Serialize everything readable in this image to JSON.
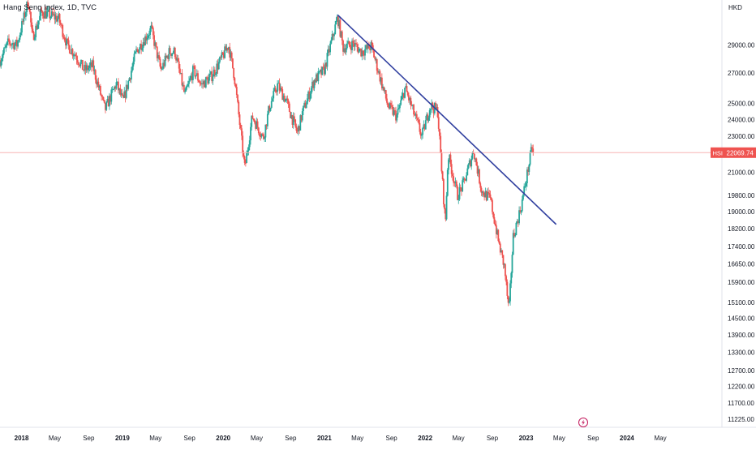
{
  "chart_title": "Hang Seng Index, 1D, TVC",
  "chart_data": {
    "type": "candlestick",
    "title": "Hang Seng Index, 1D, TVC",
    "symbol": "HSI",
    "currency": "HKD",
    "last_price": 22069.74,
    "last_price_label": "22069.74",
    "y_scale": "log",
    "ylim": [
      11000,
      32500
    ],
    "xlim": [
      "2017-10-15",
      "2024-12-10"
    ],
    "grid": false,
    "y_ticks": [
      "29000.00",
      "27000.00",
      "25000.00",
      "24000.00",
      "23000.00",
      "21000.00",
      "19800.00",
      "19000.00",
      "18200.00",
      "17400.00",
      "16650.00",
      "15900.00",
      "15100.00",
      "14500.00",
      "13900.00",
      "13300.00",
      "12700.00",
      "12200.00",
      "11700.00",
      "11225.00"
    ],
    "x_ticks": [
      {
        "label": "2018",
        "date": "2018-01-01"
      },
      {
        "label": "May",
        "date": "2018-05-01"
      },
      {
        "label": "Sep",
        "date": "2018-09-01"
      },
      {
        "label": "2019",
        "date": "2019-01-01"
      },
      {
        "label": "May",
        "date": "2019-05-01"
      },
      {
        "label": "Sep",
        "date": "2019-09-01"
      },
      {
        "label": "2020",
        "date": "2020-01-01"
      },
      {
        "label": "May",
        "date": "2020-05-01"
      },
      {
        "label": "Sep",
        "date": "2020-09-01"
      },
      {
        "label": "2021",
        "date": "2021-01-01"
      },
      {
        "label": "May",
        "date": "2021-05-01"
      },
      {
        "label": "Sep",
        "date": "2021-09-01"
      },
      {
        "label": "2022",
        "date": "2022-01-01"
      },
      {
        "label": "May",
        "date": "2022-05-01"
      },
      {
        "label": "Sep",
        "date": "2022-09-01"
      },
      {
        "label": "2023",
        "date": "2023-01-01"
      },
      {
        "label": "May",
        "date": "2023-05-01"
      },
      {
        "label": "Sep",
        "date": "2023-09-01"
      },
      {
        "label": "2024",
        "date": "2024-01-01"
      },
      {
        "label": "May",
        "date": "2024-05-01"
      }
    ],
    "price_path": [
      [
        "2017-10-15",
        27900
      ],
      [
        "2017-11-15",
        29200
      ],
      [
        "2017-12-15",
        29000
      ],
      [
        "2018-01-26",
        32500
      ],
      [
        "2018-02-09",
        29500
      ],
      [
        "2018-03-15",
        31500
      ],
      [
        "2018-05-15",
        31000
      ],
      [
        "2018-06-15",
        29000
      ],
      [
        "2018-07-15",
        28300
      ],
      [
        "2018-08-15",
        27200
      ],
      [
        "2018-09-15",
        27500
      ],
      [
        "2018-10-30",
        24600
      ],
      [
        "2018-12-10",
        26300
      ],
      [
        "2019-01-03",
        25100
      ],
      [
        "2019-02-20",
        28500
      ],
      [
        "2019-04-15",
        30200
      ],
      [
        "2019-05-20",
        27200
      ],
      [
        "2019-06-20",
        28500
      ],
      [
        "2019-07-10",
        28500
      ],
      [
        "2019-08-15",
        25500
      ],
      [
        "2019-09-15",
        27200
      ],
      [
        "2019-10-15",
        26200
      ],
      [
        "2019-11-20",
        26800
      ],
      [
        "2019-12-31",
        28200
      ],
      [
        "2020-01-20",
        29000
      ],
      [
        "2020-02-10",
        26800
      ],
      [
        "2020-03-19",
        21200
      ],
      [
        "2020-04-15",
        24200
      ],
      [
        "2020-05-25",
        22900
      ],
      [
        "2020-06-15",
        24700
      ],
      [
        "2020-07-15",
        26200
      ],
      [
        "2020-08-15",
        25200
      ],
      [
        "2020-09-25",
        23200
      ],
      [
        "2020-10-15",
        24500
      ],
      [
        "2020-11-25",
        26500
      ],
      [
        "2020-12-31",
        27200
      ],
      [
        "2021-02-18",
        31100
      ],
      [
        "2021-03-10",
        28800
      ],
      [
        "2021-04-15",
        29100
      ],
      [
        "2021-05-15",
        28500
      ],
      [
        "2021-06-20",
        28900
      ],
      [
        "2021-07-10",
        27500
      ],
      [
        "2021-08-20",
        24800
      ],
      [
        "2021-09-20",
        24200
      ],
      [
        "2021-10-20",
        26000
      ],
      [
        "2021-12-20",
        23000
      ],
      [
        "2022-01-20",
        24900
      ],
      [
        "2022-02-15",
        24500
      ],
      [
        "2022-03-15",
        18400
      ],
      [
        "2022-03-25",
        22000
      ],
      [
        "2022-04-28",
        19800
      ],
      [
        "2022-05-20",
        20400
      ],
      [
        "2022-06-25",
        22200
      ],
      [
        "2022-07-25",
        20000
      ],
      [
        "2022-08-25",
        19600
      ],
      [
        "2022-09-25",
        17500
      ],
      [
        "2022-10-15",
        16500
      ],
      [
        "2022-10-31",
        14700
      ],
      [
        "2022-11-15",
        17800
      ],
      [
        "2022-12-15",
        19300
      ],
      [
        "2023-01-10",
        21300
      ],
      [
        "2023-01-25",
        22600
      ],
      [
        "2023-01-30",
        22069.74
      ]
    ],
    "trendline": {
      "start": [
        "2021-02-18",
        31300
      ],
      "end": [
        "2023-04-20",
        18400
      ],
      "color": "#303f9f"
    },
    "colors": {
      "up": "#26a69a",
      "down": "#ef5350",
      "last_price_line": "#f7b4b4",
      "last_price_label_bg": "#ef5350"
    }
  }
}
